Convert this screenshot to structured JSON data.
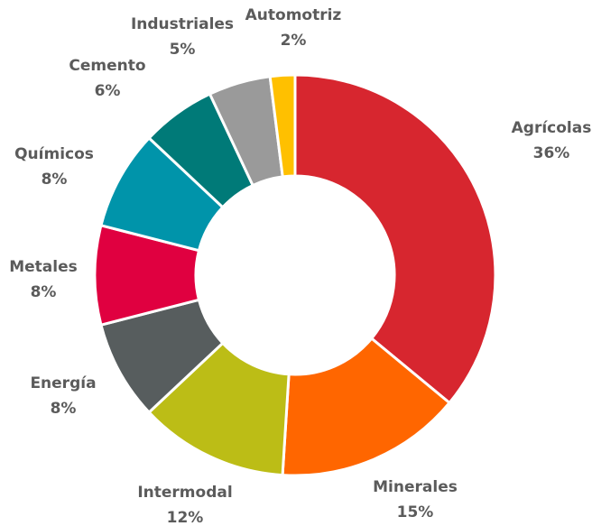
{
  "chart_data": {
    "type": "donut",
    "title": "",
    "slices": [
      {
        "label": "Agrícolas",
        "value": 36,
        "value_text": "36%",
        "color": "#d7262f"
      },
      {
        "label": "Minerales",
        "value": 15,
        "value_text": "15%",
        "color": "#ff6600"
      },
      {
        "label": "Intermodal",
        "value": 12,
        "value_text": "12%",
        "color": "#bcbd16"
      },
      {
        "label": "Energía",
        "value": 8,
        "value_text": "8%",
        "color": "#575d5e"
      },
      {
        "label": "Metales",
        "value": 8,
        "value_text": "8%",
        "color": "#e00040"
      },
      {
        "label": "Químicos",
        "value": 8,
        "value_text": "8%",
        "color": "#0094aa"
      },
      {
        "label": "Cemento",
        "value": 6,
        "value_text": "6%",
        "color": "#007a78"
      },
      {
        "label": "Industriales",
        "value": 5,
        "value_text": "5%",
        "color": "#9a9a9a"
      },
      {
        "label": "Automotriz",
        "value": 2,
        "value_text": "2%",
        "color": "#ffc000"
      }
    ]
  }
}
